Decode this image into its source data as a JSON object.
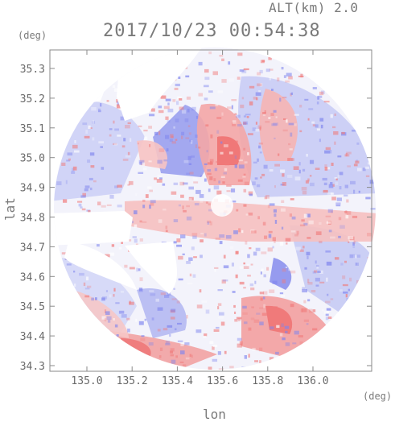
{
  "header": {
    "alt_label": "ALT(km) 2.0",
    "datetime": "2017/10/23 00:54:38"
  },
  "axes": {
    "x_label": "lon",
    "y_label": "lat",
    "x_unit": "(deg)",
    "y_unit": "(deg)",
    "x_ticks": [
      "135.0",
      "135.2",
      "135.4",
      "135.6",
      "135.8",
      "136.0"
    ],
    "y_ticks": [
      "35.3",
      "35.2",
      "35.1",
      "35.0",
      "34.9",
      "34.8",
      "34.7",
      "34.6",
      "34.5",
      "34.4",
      "34.3"
    ]
  },
  "colors": {
    "positive": "#f07a7a",
    "negative": "#7f85ee",
    "axis": "#8a8a8a"
  }
}
